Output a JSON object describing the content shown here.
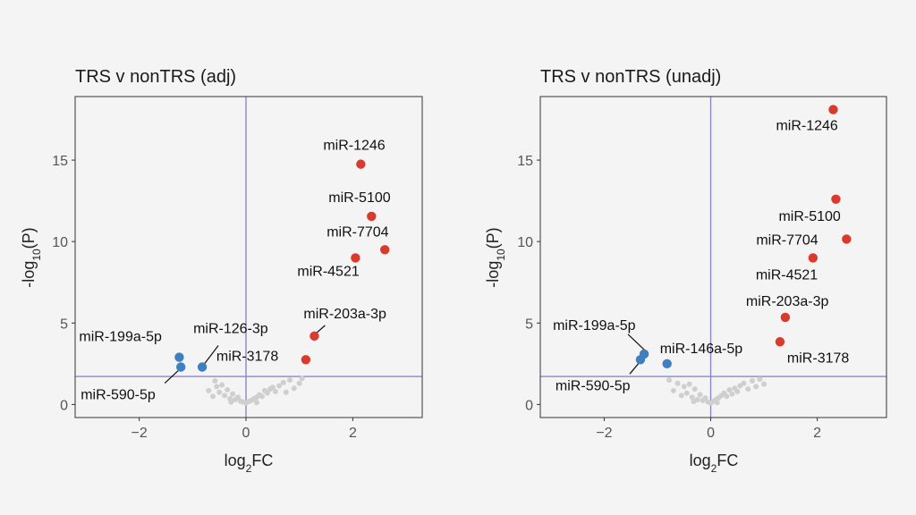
{
  "chart_data": [
    {
      "type": "scatter",
      "title": "TRS v nonTRS (adj)",
      "xlabel": "log2FC",
      "ylabel": "-log10(P)",
      "xlim": [
        -3.2,
        3.3
      ],
      "ylim": [
        -0.8,
        18.9
      ],
      "xticks": [
        -2,
        0,
        2
      ],
      "yticks": [
        0,
        5,
        10,
        15
      ],
      "vline": 0,
      "hline": 1.72,
      "grid": false,
      "colors": {
        "up": "#d93a2b",
        "down": "#3f7fbf",
        "ns": "#cfcfcf",
        "threshold": "#8a86c8"
      },
      "labeled_points": [
        {
          "label": "miR-1246",
          "x": 2.15,
          "y": 14.75,
          "group": "up"
        },
        {
          "label": "miR-5100",
          "x": 2.35,
          "y": 11.55,
          "group": "up"
        },
        {
          "label": "miR-7704",
          "x": 2.6,
          "y": 9.5,
          "group": "up"
        },
        {
          "label": "miR-4521",
          "x": 2.05,
          "y": 9.0,
          "group": "up"
        },
        {
          "label": "miR-203a-3p",
          "x": 1.28,
          "y": 4.2,
          "group": "up"
        },
        {
          "label": "miR-3178",
          "x": 1.12,
          "y": 2.75,
          "group": "up"
        },
        {
          "label": "miR-126-3p",
          "x": -0.82,
          "y": 2.3,
          "group": "down"
        },
        {
          "label": "miR-199a-5p",
          "x": -1.25,
          "y": 2.9,
          "group": "down"
        },
        {
          "label": "miR-590-5p",
          "x": -1.22,
          "y": 2.3,
          "group": "down"
        }
      ],
      "ns_points": [
        [
          -0.62,
          0.5
        ],
        [
          -0.55,
          1.1
        ],
        [
          -0.5,
          0.75
        ],
        [
          -0.45,
          1.2
        ],
        [
          -0.4,
          0.55
        ],
        [
          -0.35,
          0.9
        ],
        [
          -0.3,
          0.35
        ],
        [
          -0.25,
          0.65
        ],
        [
          -0.2,
          0.3
        ],
        [
          -0.15,
          0.45
        ],
        [
          -0.1,
          0.2
        ],
        [
          -0.05,
          0.15
        ],
        [
          0.0,
          0.1
        ],
        [
          0.05,
          0.18
        ],
        [
          0.1,
          0.25
        ],
        [
          0.15,
          0.35
        ],
        [
          0.2,
          0.45
        ],
        [
          0.25,
          0.6
        ],
        [
          0.3,
          0.5
        ],
        [
          0.35,
          0.85
        ],
        [
          0.4,
          0.7
        ],
        [
          0.45,
          0.95
        ],
        [
          0.5,
          1.05
        ],
        [
          0.55,
          0.8
        ],
        [
          0.62,
          1.15
        ],
        [
          0.7,
          1.35
        ],
        [
          0.75,
          0.75
        ],
        [
          0.82,
          1.5
        ],
        [
          0.9,
          1.0
        ],
        [
          1.0,
          1.3
        ],
        [
          1.05,
          1.6
        ],
        [
          -0.7,
          0.85
        ],
        [
          -0.58,
          1.45
        ],
        [
          0.2,
          0.12
        ],
        [
          -0.28,
          0.15
        ]
      ]
    },
    {
      "type": "scatter",
      "title": "TRS v nonTRS (unadj)",
      "xlabel": "log2FC",
      "ylabel": "-log10(P)",
      "xlim": [
        -3.2,
        3.3
      ],
      "ylim": [
        -0.8,
        18.9
      ],
      "xticks": [
        -2,
        0,
        2
      ],
      "yticks": [
        0,
        5,
        10,
        15
      ],
      "vline": 0,
      "hline": 1.72,
      "grid": false,
      "colors": {
        "up": "#d93a2b",
        "down": "#3f7fbf",
        "ns": "#cfcfcf",
        "threshold": "#8a86c8"
      },
      "labeled_points": [
        {
          "label": "miR-1246",
          "x": 2.3,
          "y": 18.1,
          "group": "up"
        },
        {
          "label": "miR-5100",
          "x": 2.35,
          "y": 12.6,
          "group": "up"
        },
        {
          "label": "miR-7704",
          "x": 2.55,
          "y": 10.15,
          "group": "up"
        },
        {
          "label": "miR-4521",
          "x": 1.92,
          "y": 9.0,
          "group": "up"
        },
        {
          "label": "miR-203a-3p",
          "x": 1.4,
          "y": 5.35,
          "group": "up"
        },
        {
          "label": "miR-3178",
          "x": 1.3,
          "y": 3.85,
          "group": "up"
        },
        {
          "label": "miR-146a-5p",
          "x": -0.82,
          "y": 2.5,
          "group": "down"
        },
        {
          "label": "miR-199a-5p",
          "x": -1.25,
          "y": 3.1,
          "group": "down"
        },
        {
          "label": "miR-590-5p",
          "x": -1.32,
          "y": 2.75,
          "group": "down"
        }
      ],
      "ns_points": [
        [
          -0.7,
          0.85
        ],
        [
          -0.62,
          1.3
        ],
        [
          -0.55,
          0.55
        ],
        [
          -0.5,
          1.1
        ],
        [
          -0.45,
          0.7
        ],
        [
          -0.4,
          1.25
        ],
        [
          -0.35,
          0.45
        ],
        [
          -0.3,
          0.95
        ],
        [
          -0.25,
          0.3
        ],
        [
          -0.2,
          0.6
        ],
        [
          -0.15,
          0.25
        ],
        [
          -0.1,
          0.4
        ],
        [
          -0.05,
          0.15
        ],
        [
          0.0,
          0.1
        ],
        [
          0.05,
          0.2
        ],
        [
          0.1,
          0.3
        ],
        [
          0.15,
          0.42
        ],
        [
          0.2,
          0.55
        ],
        [
          0.25,
          0.7
        ],
        [
          0.3,
          0.5
        ],
        [
          0.35,
          0.9
        ],
        [
          0.4,
          0.65
        ],
        [
          0.45,
          1.0
        ],
        [
          0.5,
          0.8
        ],
        [
          0.55,
          1.15
        ],
        [
          0.62,
          1.3
        ],
        [
          0.7,
          0.95
        ],
        [
          0.78,
          1.45
        ],
        [
          0.85,
          1.1
        ],
        [
          0.92,
          1.55
        ],
        [
          1.0,
          1.25
        ],
        [
          -0.78,
          1.5
        ],
        [
          0.12,
          0.12
        ],
        [
          -0.32,
          0.18
        ]
      ]
    }
  ]
}
